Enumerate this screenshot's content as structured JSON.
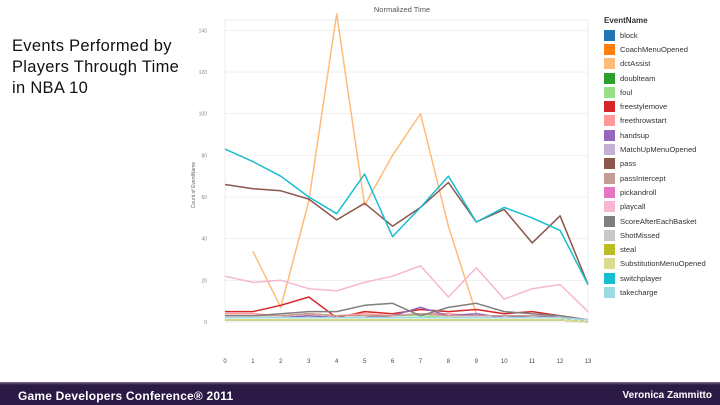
{
  "slide": {
    "title": "Events Performed by Players Through Time in NBA 10",
    "footer_conference": "Game Developers Conference® 2011",
    "footer_author": "Veronica Zammitto"
  },
  "colors": {
    "footer_bg": "#2a1a45",
    "grid": "#e6e6e6"
  },
  "chart_data": {
    "type": "line",
    "title": "Normalized Time",
    "xlabel": "",
    "ylabel": "Count of EventName",
    "x": [
      0,
      1,
      2,
      3,
      4,
      5,
      6,
      7,
      8,
      9,
      10,
      11,
      12,
      13
    ],
    "xlim": [
      0,
      13
    ],
    "ylim": [
      0,
      145
    ],
    "yticks": [
      0,
      20,
      40,
      60,
      80,
      100,
      120,
      140
    ],
    "legend_title": "EventName",
    "legend_position": "right",
    "series": [
      {
        "name": "block",
        "color": "#1f77b4",
        "values": [
          1,
          1,
          1,
          1,
          1,
          1,
          1,
          1,
          1,
          1,
          1,
          1,
          1,
          0
        ]
      },
      {
        "name": "CoachMenuOpened",
        "color": "#ff7f0e",
        "values": [
          3,
          3,
          3,
          4,
          3,
          3,
          3,
          4,
          3,
          3,
          3,
          3,
          3,
          1
        ]
      },
      {
        "name": "dctAssist",
        "color": "#ffbb78",
        "values": [
          null,
          34,
          7,
          58,
          148,
          56,
          80,
          100,
          46,
          4,
          null,
          null,
          null,
          null
        ]
      },
      {
        "name": "doublteam",
        "color": "#2ca02c",
        "values": [
          1,
          1,
          1,
          1,
          1,
          1,
          1,
          1,
          1,
          1,
          1,
          1,
          1,
          0
        ]
      },
      {
        "name": "foul",
        "color": "#98df8a",
        "values": [
          2,
          2,
          2,
          3,
          2,
          2,
          3,
          3,
          2,
          2,
          2,
          2,
          2,
          1
        ]
      },
      {
        "name": "freestylemove",
        "color": "#d62728",
        "values": [
          5,
          5,
          8,
          12,
          2,
          5,
          4,
          6,
          5,
          6,
          4,
          5,
          3,
          1
        ]
      },
      {
        "name": "freethrowstart",
        "color": "#ff9896",
        "values": [
          4,
          4,
          3,
          4,
          3,
          4,
          3,
          4,
          4,
          3,
          3,
          3,
          3,
          1
        ]
      },
      {
        "name": "handsup",
        "color": "#9467bd",
        "values": [
          2,
          2,
          2,
          3,
          2,
          2,
          3,
          7,
          3,
          4,
          2,
          3,
          2,
          1
        ]
      },
      {
        "name": "MatchUpMenuOpened",
        "color": "#c5b0d5",
        "values": [
          1,
          1,
          1,
          1,
          1,
          1,
          1,
          1,
          1,
          1,
          1,
          1,
          1,
          0
        ]
      },
      {
        "name": "pass",
        "color": "#8c564b",
        "values": [
          66,
          64,
          63,
          59,
          49,
          57,
          46,
          55,
          67,
          48,
          54,
          38,
          51,
          18
        ]
      },
      {
        "name": "passIntercept",
        "color": "#c49c94",
        "values": [
          3,
          3,
          3,
          4,
          3,
          3,
          3,
          4,
          3,
          3,
          3,
          3,
          3,
          1
        ]
      },
      {
        "name": "pickandroll",
        "color": "#e377c2",
        "values": [
          2,
          2,
          2,
          2,
          2,
          2,
          2,
          2,
          2,
          2,
          2,
          2,
          2,
          1
        ]
      },
      {
        "name": "playcall",
        "color": "#f7b6d2",
        "values": [
          22,
          19,
          20,
          16,
          15,
          19,
          22,
          27,
          12,
          26,
          11,
          16,
          18,
          5
        ]
      },
      {
        "name": "ScoreAfterEachBasket",
        "color": "#7f7f7f",
        "values": [
          3,
          3,
          4,
          5,
          5,
          8,
          9,
          3,
          7,
          9,
          5,
          4,
          3,
          1
        ]
      },
      {
        "name": "ShotMissed",
        "color": "#c7c7c7",
        "values": [
          2,
          2,
          2,
          2,
          2,
          2,
          2,
          2,
          2,
          2,
          2,
          2,
          2,
          1
        ]
      },
      {
        "name": "steal",
        "color": "#bcbd22",
        "values": [
          1,
          1,
          1,
          1,
          1,
          1,
          1,
          1,
          1,
          1,
          1,
          1,
          1,
          0
        ]
      },
      {
        "name": "SubstitutionMenuOpened",
        "color": "#dbdb8d",
        "values": [
          1,
          1,
          1,
          1,
          1,
          1,
          1,
          1,
          1,
          1,
          1,
          1,
          1,
          0
        ]
      },
      {
        "name": "switchplayer",
        "color": "#17becf",
        "values": [
          83,
          77,
          70,
          60,
          52,
          71,
          41,
          55,
          70,
          48,
          55,
          50,
          44,
          18
        ]
      },
      {
        "name": "takecharge",
        "color": "#9edae5",
        "values": [
          2,
          2,
          2,
          2,
          2,
          2,
          2,
          2,
          2,
          2,
          2,
          2,
          2,
          1
        ]
      }
    ]
  }
}
